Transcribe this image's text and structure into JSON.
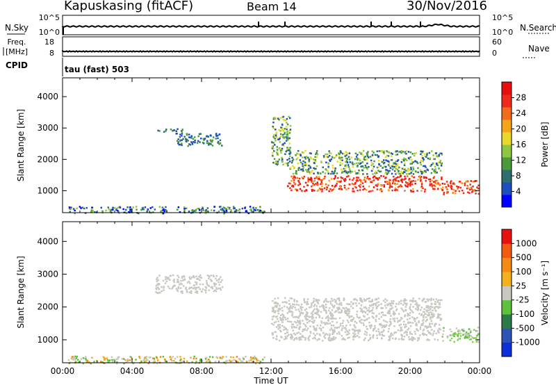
{
  "header": {
    "station": "Kapuskasing (fitACF)",
    "beam": "Beam 14",
    "date": "30/Nov/2016"
  },
  "top_panels": {
    "nsky_label": "N.Sky",
    "nsky_ticks": [
      "10^5",
      "10^0"
    ],
    "nsearch_label": "N.Search",
    "nsearch_ticks": [
      "10^5",
      "10^0"
    ],
    "freq_label": "Freq.",
    "freq_unit": "[MHz]",
    "freq_ticks": [
      "18",
      "8"
    ],
    "nave_label": "Nave",
    "nave_ticks": [
      "60",
      "0"
    ],
    "cpid_label": "CPID",
    "cpid_value": "tau (fast) 503"
  },
  "chart_data": [
    {
      "type": "heatmap",
      "name": "power",
      "ylabel": "Slant Range [km]",
      "colorbar_label": "Power [dB]",
      "colorbar_ticks": [
        "28",
        "24",
        "20",
        "16",
        "12",
        "8",
        "4"
      ],
      "colorbar_colors": [
        "#0000ff",
        "#1e4fbf",
        "#2e6e6e",
        "#4a9a3c",
        "#8ec63f",
        "#e8d82a",
        "#f7a21b",
        "#f26a1b",
        "#ee2a1a",
        "#e80e0e"
      ],
      "ylim": [
        300,
        4600
      ],
      "y_ticks": [
        1000,
        2000,
        3000,
        4000
      ],
      "xlim_hours": [
        0,
        24
      ],
      "regions": [
        {
          "t0": 0.3,
          "t1": 11.6,
          "r0": 300,
          "r1": 520,
          "level": "low-mixed"
        },
        {
          "t0": 5.3,
          "t1": 7.0,
          "r0": 2900,
          "r1": 3000,
          "level": "low"
        },
        {
          "t0": 6.5,
          "t1": 9.2,
          "r0": 2450,
          "r1": 2850,
          "level": "low"
        },
        {
          "t0": 12.0,
          "t1": 13.1,
          "r0": 1800,
          "r1": 3400,
          "level": "mid"
        },
        {
          "t0": 13.0,
          "t1": 21.8,
          "r0": 1550,
          "r1": 2300,
          "level": "mid"
        },
        {
          "t0": 12.9,
          "t1": 21.8,
          "r0": 1000,
          "r1": 1500,
          "level": "high"
        },
        {
          "t0": 21.8,
          "t1": 23.9,
          "r0": 900,
          "r1": 1350,
          "level": "high"
        }
      ]
    },
    {
      "type": "heatmap",
      "name": "velocity",
      "ylabel": "Slant Range [km]",
      "colorbar_label": "Velocity [m s^-1]",
      "colorbar_ticks": [
        "1000",
        "500",
        "100",
        "25",
        "-25",
        "-100",
        "-500",
        "-1000"
      ],
      "colorbar_colors": [
        "#0b2fd8",
        "#2e53b8",
        "#2d7a49",
        "#5cc23c",
        "#c8c8c0",
        "#f2b01e",
        "#f58a14",
        "#f25a12",
        "#e81010"
      ],
      "ylim": [
        300,
        4600
      ],
      "y_ticks": [
        1000,
        2000,
        3000,
        4000
      ],
      "xlim_hours": [
        0,
        24
      ],
      "regions": [
        {
          "t0": 0.3,
          "t1": 11.6,
          "r0": 300,
          "r1": 520,
          "level": "slow-mixed"
        },
        {
          "t0": 5.3,
          "t1": 9.2,
          "r0": 2450,
          "r1": 3000,
          "level": "ground"
        },
        {
          "t0": 12.0,
          "t1": 21.8,
          "r0": 1000,
          "r1": 2300,
          "level": "ground"
        },
        {
          "t0": 21.8,
          "t1": 23.9,
          "r0": 950,
          "r1": 1400,
          "level": "green"
        }
      ]
    }
  ],
  "x_axis": {
    "ticks": [
      "00:00",
      "04:00",
      "08:00",
      "12:00",
      "16:00",
      "20:00",
      "00:00"
    ],
    "label": "Time UT"
  }
}
